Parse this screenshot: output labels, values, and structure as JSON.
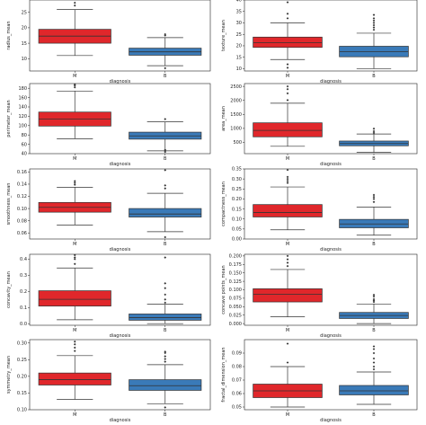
{
  "colors": {
    "M": "#e0272b",
    "B": "#3a7ab8",
    "frame": "#222222",
    "line": "#333333"
  },
  "chart_data": [
    {
      "type": "box",
      "xlabel": "diagnosis",
      "ylabel": "radius_mean",
      "categories": [
        "M",
        "B"
      ],
      "ylim": [
        6,
        29
      ],
      "yticks": [
        10,
        15,
        20,
        25
      ],
      "series": [
        {
          "name": "M",
          "whisker_low": 11,
          "q1": 15.0,
          "median": 17.3,
          "q3": 19.5,
          "whisker_high": 25.9,
          "outliers": [
            27.2,
            28.1
          ]
        },
        {
          "name": "B",
          "whisker_low": 7.7,
          "q1": 11.1,
          "median": 12.2,
          "q3": 13.4,
          "whisker_high": 16.8,
          "outliers": [
            6.9,
            17.5,
            17.9
          ]
        }
      ]
    },
    {
      "type": "box",
      "xlabel": "diagnosis",
      "ylabel": "texture_mean",
      "categories": [
        "M",
        "B"
      ],
      "ylim": [
        9,
        40
      ],
      "yticks": [
        10,
        15,
        20,
        25,
        30,
        35,
        40
      ],
      "series": [
        {
          "name": "M",
          "whisker_low": 14,
          "q1": 19.3,
          "median": 21.4,
          "q3": 23.8,
          "whisker_high": 30,
          "outliers": [
            10.4,
            11.9,
            32,
            34,
            39
          ]
        },
        {
          "name": "B",
          "whisker_low": 10,
          "q1": 15.2,
          "median": 17.4,
          "q3": 19.8,
          "whisker_high": 25.5,
          "outliers": [
            27,
            28,
            29,
            30,
            31,
            32,
            33.5
          ]
        }
      ]
    },
    {
      "type": "box",
      "xlabel": "diagnosis",
      "ylabel": "perimeter_mean",
      "categories": [
        "M",
        "B"
      ],
      "ylim": [
        40,
        190
      ],
      "yticks": [
        40,
        60,
        80,
        100,
        120,
        140,
        160,
        180
      ],
      "series": [
        {
          "name": "M",
          "whisker_low": 72,
          "q1": 99,
          "median": 114,
          "q3": 129,
          "whisker_high": 174,
          "outliers": [
            182,
            186,
            188
          ]
        },
        {
          "name": "B",
          "whisker_low": 46,
          "q1": 71,
          "median": 78,
          "q3": 86,
          "whisker_high": 108,
          "outliers": [
            43.8,
            48,
            114
          ]
        }
      ]
    },
    {
      "type": "box",
      "xlabel": "diagnosis",
      "ylabel": "area_mean",
      "categories": [
        "M",
        "B"
      ],
      "ylim": [
        100,
        2600
      ],
      "yticks": [
        500,
        1000,
        1500,
        2000,
        2500
      ],
      "series": [
        {
          "name": "M",
          "whisker_low": 362,
          "q1": 700,
          "median": 930,
          "q3": 1200,
          "whisker_high": 1900,
          "outliers": [
            2010,
            2250,
            2400,
            2500
          ]
        },
        {
          "name": "B",
          "whisker_low": 143,
          "q1": 380,
          "median": 460,
          "q3": 550,
          "whisker_high": 800,
          "outliers": [
            840,
            900,
            990
          ]
        }
      ]
    },
    {
      "type": "box",
      "xlabel": "diagnosis",
      "ylabel": "smoothness_mean",
      "categories": [
        "M",
        "B"
      ],
      "ylim": [
        0.05,
        0.165
      ],
      "yticks": [
        0.06,
        0.08,
        0.1,
        0.12,
        0.14,
        0.16
      ],
      "series": [
        {
          "name": "M",
          "whisker_low": 0.073,
          "q1": 0.094,
          "median": 0.102,
          "q3": 0.11,
          "whisker_high": 0.135,
          "outliers": [
            0.139,
            0.142,
            0.145
          ]
        },
        {
          "name": "B",
          "whisker_low": 0.062,
          "q1": 0.086,
          "median": 0.091,
          "q3": 0.1,
          "whisker_high": 0.125,
          "outliers": [
            0.053,
            0.133,
            0.138,
            0.163
          ]
        }
      ]
    },
    {
      "type": "box",
      "xlabel": "diagnosis",
      "ylabel": "compactness_mean",
      "categories": [
        "M",
        "B"
      ],
      "ylim": [
        0.0,
        0.35
      ],
      "yticks": [
        0.0,
        0.05,
        0.1,
        0.15,
        0.2,
        0.25,
        0.3,
        0.35
      ],
      "series": [
        {
          "name": "M",
          "whisker_low": 0.046,
          "q1": 0.11,
          "median": 0.132,
          "q3": 0.172,
          "whisker_high": 0.26,
          "outliers": [
            0.28,
            0.29,
            0.3,
            0.31,
            0.345
          ]
        },
        {
          "name": "B",
          "whisker_low": 0.019,
          "q1": 0.056,
          "median": 0.075,
          "q3": 0.098,
          "whisker_high": 0.16,
          "outliers": [
            0.185,
            0.2,
            0.21,
            0.22
          ]
        }
      ]
    },
    {
      "type": "box",
      "xlabel": "diagnosis",
      "ylabel": "concavity_mean",
      "categories": [
        "M",
        "B"
      ],
      "ylim": [
        -0.01,
        0.43
      ],
      "yticks": [
        0.0,
        0.1,
        0.2,
        0.3,
        0.4
      ],
      "series": [
        {
          "name": "M",
          "whisker_low": 0.024,
          "q1": 0.109,
          "median": 0.151,
          "q3": 0.204,
          "whisker_high": 0.345,
          "outliers": [
            0.37,
            0.4,
            0.41,
            0.425
          ]
        },
        {
          "name": "B",
          "whisker_low": 0.0,
          "q1": 0.021,
          "median": 0.037,
          "q3": 0.06,
          "whisker_high": 0.12,
          "outliers": [
            0.13,
            0.15,
            0.18,
            0.22,
            0.25,
            0.41
          ]
        }
      ]
    },
    {
      "type": "box",
      "xlabel": "diagnosis",
      "ylabel": "concave points_mean",
      "categories": [
        "M",
        "B"
      ],
      "ylim": [
        -0.005,
        0.205
      ],
      "yticks": [
        0.0,
        0.025,
        0.05,
        0.075,
        0.1,
        0.125,
        0.15,
        0.175,
        0.2
      ],
      "series": [
        {
          "name": "M",
          "whisker_low": 0.02,
          "q1": 0.064,
          "median": 0.087,
          "q3": 0.103,
          "whisker_high": 0.16,
          "outliers": [
            0.17,
            0.18,
            0.19,
            0.2
          ]
        },
        {
          "name": "B",
          "whisker_low": 0.0,
          "q1": 0.015,
          "median": 0.024,
          "q3": 0.033,
          "whisker_high": 0.058,
          "outliers": [
            0.064,
            0.068,
            0.072,
            0.08,
            0.085
          ]
        }
      ]
    },
    {
      "type": "box",
      "xlabel": "diagnosis",
      "ylabel": "symmetry_mean",
      "categories": [
        "M",
        "B"
      ],
      "ylim": [
        0.1,
        0.31
      ],
      "yticks": [
        0.1,
        0.15,
        0.2,
        0.25,
        0.3
      ],
      "series": [
        {
          "name": "M",
          "whisker_low": 0.131,
          "q1": 0.174,
          "median": 0.19,
          "q3": 0.21,
          "whisker_high": 0.262,
          "outliers": [
            0.276,
            0.286,
            0.296,
            0.304
          ]
        },
        {
          "name": "B",
          "whisker_low": 0.118,
          "q1": 0.158,
          "median": 0.172,
          "q3": 0.19,
          "whisker_high": 0.235,
          "outliers": [
            0.107,
            0.244,
            0.252,
            0.26,
            0.27,
            0.274
          ]
        }
      ]
    },
    {
      "type": "box",
      "xlabel": "diagnosis",
      "ylabel": "fractal_dimension_mean",
      "categories": [
        "M",
        "B"
      ],
      "ylim": [
        0.048,
        0.1
      ],
      "yticks": [
        0.05,
        0.06,
        0.07,
        0.08,
        0.09
      ],
      "series": [
        {
          "name": "M",
          "whisker_low": 0.05,
          "q1": 0.057,
          "median": 0.062,
          "q3": 0.067,
          "whisker_high": 0.08,
          "outliers": [
            0.083,
            0.097
          ]
        },
        {
          "name": "B",
          "whisker_low": 0.052,
          "q1": 0.059,
          "median": 0.062,
          "q3": 0.066,
          "whisker_high": 0.076,
          "outliers": [
            0.078,
            0.08,
            0.083,
            0.086,
            0.09,
            0.093,
            0.095
          ]
        }
      ]
    }
  ]
}
